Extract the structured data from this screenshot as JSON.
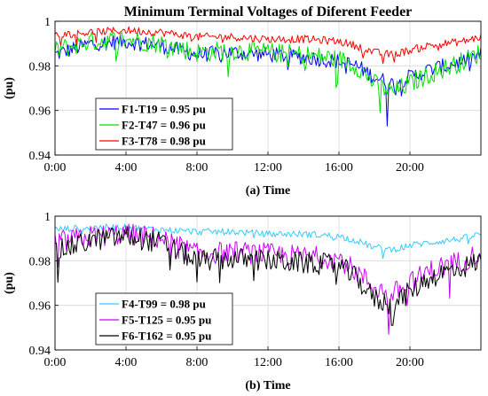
{
  "chart_data": [
    {
      "type": "line",
      "title": "Minimum Terminal Voltages of Diferent Feeder",
      "xlabel": "(a) Time",
      "ylabel": "(pu)",
      "x_ticks": [
        "0:00",
        "4:00",
        "8:00",
        "12:00",
        "16:00",
        "20:00"
      ],
      "x_hours": [
        0,
        4,
        8,
        12,
        16,
        20
      ],
      "xlim_hours": [
        0,
        24
      ],
      "ylim": [
        0.94,
        1.0
      ],
      "y_ticks": [
        0.94,
        0.96,
        0.98,
        1
      ],
      "y_tick_labels": [
        "0.94",
        "0.96",
        "0.98",
        "1"
      ],
      "grid": true,
      "legend_position": "bottom-left",
      "series": [
        {
          "name": "F1-T19 = 0.95 pu",
          "color": "#0000ff",
          "x": [
            0,
            2,
            4,
            6,
            8,
            10,
            12,
            14,
            16,
            17,
            18,
            19,
            20,
            21,
            22,
            23,
            24
          ],
          "values": [
            0.985,
            0.99,
            0.991,
            0.989,
            0.985,
            0.986,
            0.985,
            0.984,
            0.982,
            0.98,
            0.975,
            0.972,
            0.975,
            0.978,
            0.98,
            0.982,
            0.985
          ],
          "min": {
            "x": 18.7,
            "value": 0.953
          }
        },
        {
          "name": "F2-T47 = 0.96 pu",
          "color": "#00e000",
          "x": [
            0,
            2,
            4,
            6,
            8,
            10,
            12,
            14,
            16,
            17,
            18,
            19,
            20,
            21,
            22,
            23,
            24
          ],
          "values": [
            0.987,
            0.991,
            0.992,
            0.99,
            0.986,
            0.987,
            0.986,
            0.985,
            0.983,
            0.98,
            0.972,
            0.968,
            0.972,
            0.976,
            0.979,
            0.982,
            0.986
          ],
          "min": {
            "x": 18.3,
            "value": 0.959
          }
        },
        {
          "name": "F3-T78 = 0.98 pu",
          "color": "#ff0000",
          "x": [
            0,
            2,
            4,
            6,
            8,
            10,
            12,
            14,
            16,
            17,
            18,
            19,
            20,
            21,
            22,
            23,
            24
          ],
          "values": [
            0.994,
            0.995,
            0.996,
            0.995,
            0.993,
            0.993,
            0.992,
            0.992,
            0.991,
            0.989,
            0.986,
            0.985,
            0.987,
            0.989,
            0.99,
            0.991,
            0.993
          ],
          "min": {
            "x": 18.5,
            "value": 0.981
          }
        }
      ]
    },
    {
      "type": "line",
      "title": "",
      "xlabel": "(b) Time",
      "ylabel": "(pu)",
      "x_ticks": [
        "0:00",
        "4:00",
        "8:00",
        "12:00",
        "16:00",
        "20:00"
      ],
      "x_hours": [
        0,
        4,
        8,
        12,
        16,
        20
      ],
      "xlim_hours": [
        0,
        24
      ],
      "ylim": [
        0.94,
        1.0
      ],
      "y_ticks": [
        0.94,
        0.96,
        0.98,
        1
      ],
      "y_tick_labels": [
        "0.94",
        "0.96",
        "0.98",
        "1"
      ],
      "grid": true,
      "legend_position": "bottom-left",
      "series": [
        {
          "name": "F4-T99 = 0.98 pu",
          "color": "#33ccff",
          "x": [
            0,
            2,
            4,
            6,
            8,
            10,
            12,
            14,
            16,
            17,
            18,
            19,
            20,
            21,
            22,
            23,
            24
          ],
          "values": [
            0.994,
            0.995,
            0.995,
            0.994,
            0.993,
            0.993,
            0.992,
            0.992,
            0.991,
            0.989,
            0.986,
            0.985,
            0.987,
            0.988,
            0.989,
            0.99,
            0.992
          ],
          "min": {
            "x": 18.5,
            "value": 0.981
          }
        },
        {
          "name": "F5-T125 = 0.95 pu",
          "color": "#cc00ff",
          "x": [
            0,
            2,
            4,
            6,
            8,
            10,
            12,
            14,
            16,
            17,
            18,
            19,
            20,
            21,
            22,
            23,
            24
          ],
          "values": [
            0.988,
            0.991,
            0.992,
            0.99,
            0.983,
            0.984,
            0.983,
            0.982,
            0.981,
            0.975,
            0.968,
            0.965,
            0.97,
            0.975,
            0.978,
            0.98,
            0.984
          ],
          "min": {
            "x": 18.8,
            "value": 0.947
          }
        },
        {
          "name": "F6-T162 = 0.95 pu",
          "color": "#000000",
          "x": [
            0,
            2,
            4,
            6,
            8,
            10,
            12,
            14,
            16,
            17,
            18,
            19,
            20,
            21,
            22,
            23,
            24
          ],
          "values": [
            0.984,
            0.989,
            0.991,
            0.988,
            0.98,
            0.981,
            0.98,
            0.979,
            0.978,
            0.972,
            0.963,
            0.96,
            0.966,
            0.972,
            0.975,
            0.977,
            0.98
          ],
          "min": {
            "x": 19.0,
            "value": 0.951
          }
        }
      ]
    }
  ]
}
